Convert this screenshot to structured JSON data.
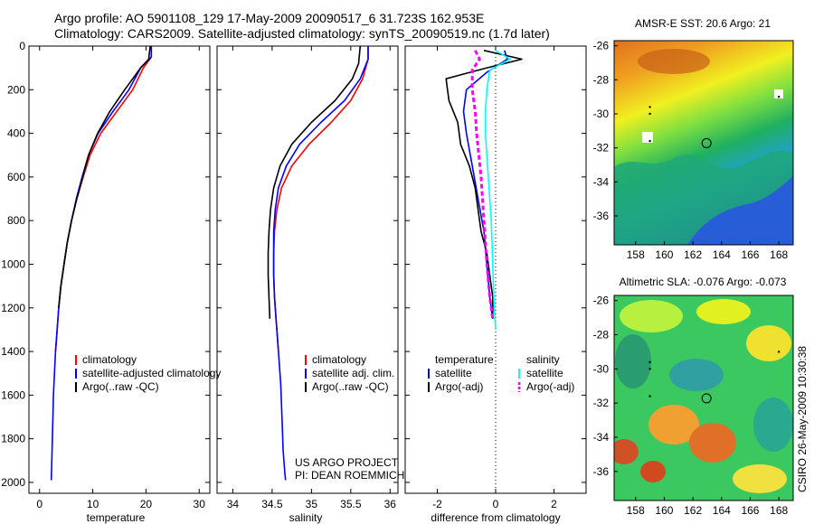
{
  "header": {
    "line1": "Argo profile: AO 5901108_129 17-May-2009 20090517_6 31.723S 162.953E",
    "line2": "Climatology: CARS2009. Satellite-adjusted climatology: synTS_20090519.nc (1.7d later)"
  },
  "side_label": "CSIRO 26-May-2009 10:30:38",
  "colors": {
    "climatology": "#ff0000",
    "satellite": "#0000ff",
    "argo": "#000000",
    "salinity_satellite": "#00ffff",
    "salinity_argo": "#ff00ff"
  },
  "project_note": [
    "US ARGO PROJECT",
    "PI: DEAN ROEMMICH"
  ],
  "chart_data": [
    {
      "type": "line",
      "xlabel": "temperature",
      "ylim": [
        2050,
        0
      ],
      "xlim": [
        -2,
        32
      ],
      "xticks": [
        "0",
        "10",
        "20",
        "30"
      ],
      "xtick_values": [
        0,
        10,
        20,
        30
      ],
      "yticks": [
        "0",
        "200",
        "400",
        "600",
        "800",
        "1000",
        "1200",
        "1400",
        "1600",
        "1800",
        "2000"
      ],
      "ytick_values": [
        0,
        200,
        400,
        600,
        800,
        1000,
        1200,
        1400,
        1600,
        1800,
        2000
      ],
      "legend": [
        "climatology",
        "satellite-adjusted climatology",
        "Argo(..raw -QC)"
      ],
      "series": [
        {
          "name": "climatology",
          "color": "#ff0000",
          "points": [
            [
              21.0,
              0
            ],
            [
              21.0,
              50
            ],
            [
              19.5,
              100
            ],
            [
              17.5,
              200
            ],
            [
              14.5,
              300
            ],
            [
              11.5,
              400
            ],
            [
              9.5,
              500
            ],
            [
              8.2,
              600
            ],
            [
              7.0,
              700
            ],
            [
              6.0,
              800
            ],
            [
              5.2,
              900
            ],
            [
              4.6,
              1000
            ],
            [
              4.0,
              1100
            ],
            [
              3.6,
              1200
            ],
            [
              3.3,
              1300
            ],
            [
              3.0,
              1400
            ]
          ]
        },
        {
          "name": "satellite-adjusted climatology",
          "color": "#0000ff",
          "points": [
            [
              21.0,
              0
            ],
            [
              21.0,
              50
            ],
            [
              19.0,
              100
            ],
            [
              16.8,
              200
            ],
            [
              13.8,
              300
            ],
            [
              11.0,
              400
            ],
            [
              9.2,
              500
            ],
            [
              8.0,
              600
            ],
            [
              6.9,
              700
            ],
            [
              6.0,
              800
            ],
            [
              5.2,
              900
            ],
            [
              4.6,
              1000
            ],
            [
              4.0,
              1100
            ],
            [
              3.6,
              1200
            ],
            [
              3.3,
              1300
            ],
            [
              3.0,
              1400
            ],
            [
              2.8,
              1500
            ],
            [
              2.6,
              1600
            ],
            [
              2.5,
              1700
            ],
            [
              2.4,
              1800
            ],
            [
              2.3,
              1900
            ],
            [
              2.2,
              1990
            ]
          ]
        },
        {
          "name": "Argo(..raw -QC)",
          "color": "#000000",
          "points": [
            [
              20.8,
              0
            ],
            [
              20.5,
              60
            ],
            [
              19.0,
              100
            ],
            [
              16.0,
              200
            ],
            [
              13.2,
              300
            ],
            [
              10.9,
              400
            ],
            [
              9.2,
              500
            ],
            [
              8.1,
              600
            ],
            [
              7.0,
              700
            ],
            [
              6.0,
              800
            ],
            [
              5.2,
              900
            ],
            [
              4.6,
              1000
            ],
            [
              4.0,
              1100
            ],
            [
              3.6,
              1200
            ]
          ]
        }
      ]
    },
    {
      "type": "line",
      "xlabel": "salinity",
      "ylim": [
        2050,
        0
      ],
      "xlim": [
        33.8,
        36.1
      ],
      "xticks": [
        "34",
        "34.5",
        "35",
        "35.5",
        "36"
      ],
      "xtick_values": [
        34,
        34.5,
        35,
        35.5,
        36
      ],
      "legend": [
        "climatology",
        "satellite adj. clim.",
        "Argo(..raw -QC)"
      ],
      "series": [
        {
          "name": "climatology",
          "color": "#ff0000",
          "points": [
            [
              35.72,
              0
            ],
            [
              35.72,
              60
            ],
            [
              35.65,
              150
            ],
            [
              35.5,
              250
            ],
            [
              35.25,
              350
            ],
            [
              34.97,
              450
            ],
            [
              34.75,
              550
            ],
            [
              34.62,
              650
            ],
            [
              34.56,
              750
            ],
            [
              34.53,
              850
            ],
            [
              34.52,
              950
            ],
            [
              34.52,
              1050
            ],
            [
              34.53,
              1150
            ],
            [
              34.55,
              1250
            ],
            [
              34.57,
              1350
            ],
            [
              34.58,
              1400
            ]
          ]
        },
        {
          "name": "satellite adj. clim.",
          "color": "#0000ff",
          "points": [
            [
              35.72,
              0
            ],
            [
              35.72,
              60
            ],
            [
              35.62,
              150
            ],
            [
              35.42,
              250
            ],
            [
              35.12,
              350
            ],
            [
              34.85,
              450
            ],
            [
              34.68,
              550
            ],
            [
              34.58,
              650
            ],
            [
              34.54,
              750
            ],
            [
              34.52,
              850
            ],
            [
              34.52,
              950
            ],
            [
              34.52,
              1050
            ],
            [
              34.53,
              1150
            ],
            [
              34.55,
              1250
            ],
            [
              34.57,
              1350
            ],
            [
              34.59,
              1450
            ],
            [
              34.61,
              1550
            ],
            [
              34.62,
              1650
            ],
            [
              34.63,
              1750
            ],
            [
              34.64,
              1850
            ],
            [
              34.66,
              1950
            ],
            [
              34.67,
              1990
            ]
          ]
        },
        {
          "name": "Argo(..raw -QC)",
          "color": "#000000",
          "points": [
            [
              35.62,
              0
            ],
            [
              35.6,
              80
            ],
            [
              35.52,
              150
            ],
            [
              35.3,
              250
            ],
            [
              35.0,
              350
            ],
            [
              34.75,
              450
            ],
            [
              34.6,
              550
            ],
            [
              34.52,
              650
            ],
            [
              34.48,
              750
            ],
            [
              34.46,
              850
            ],
            [
              34.45,
              950
            ],
            [
              34.45,
              1050
            ],
            [
              34.46,
              1150
            ],
            [
              34.47,
              1250
            ]
          ]
        }
      ]
    },
    {
      "type": "line",
      "xlabel": "difference from climatology",
      "ylim": [
        2050,
        0
      ],
      "xlim": [
        -3.1,
        3.1
      ],
      "xticks": [
        "-2",
        "0",
        "2"
      ],
      "xtick_values": [
        -2,
        0,
        2
      ],
      "legend": [
        "temperature",
        "satellite",
        "Argo(-adj)",
        "salinity",
        "satellite",
        "Argo(-adj)"
      ],
      "series": [
        {
          "name": "satellite",
          "color": "#0000ff",
          "points": [
            [
              0.3,
              20
            ],
            [
              0.4,
              60
            ],
            [
              -0.3,
              120
            ],
            [
              -1.0,
              200
            ],
            [
              -1.1,
              300
            ],
            [
              -1.0,
              400
            ],
            [
              -0.8,
              550
            ],
            [
              -0.6,
              700
            ],
            [
              -0.4,
              850
            ],
            [
              -0.3,
              1000
            ],
            [
              -0.2,
              1150
            ],
            [
              -0.1,
              1250
            ]
          ]
        },
        {
          "name": "Argo(-adj)",
          "color": "#000000",
          "points": [
            [
              -0.4,
              20
            ],
            [
              0.9,
              60
            ],
            [
              -0.3,
              100
            ],
            [
              -1.7,
              150
            ],
            [
              -1.6,
              250
            ],
            [
              -1.3,
              350
            ],
            [
              -1.2,
              450
            ],
            [
              -0.9,
              550
            ],
            [
              -0.7,
              650
            ],
            [
              -0.6,
              750
            ],
            [
              -0.5,
              850
            ],
            [
              -0.3,
              950
            ],
            [
              -0.2,
              1050
            ],
            [
              -0.1,
              1150
            ],
            [
              -0.1,
              1250
            ]
          ]
        },
        {
          "name": "satellite",
          "color": "#00ffff",
          "points": [
            [
              0.0,
              20
            ],
            [
              0.5,
              60
            ],
            [
              -0.2,
              110
            ],
            [
              -0.3,
              200
            ],
            [
              -0.35,
              300
            ],
            [
              -0.35,
              400
            ],
            [
              -0.25,
              600
            ],
            [
              -0.15,
              800
            ],
            [
              -0.1,
              1000
            ],
            [
              -0.05,
              1200
            ],
            [
              0.0,
              1300
            ]
          ]
        },
        {
          "name": "Argo(-adj)",
          "color": "#ff00ff",
          "dashed": true,
          "points": [
            [
              -0.7,
              20
            ],
            [
              -0.55,
              60
            ],
            [
              -0.8,
              110
            ],
            [
              -0.8,
              200
            ],
            [
              -0.7,
              300
            ],
            [
              -0.65,
              400
            ],
            [
              -0.5,
              600
            ],
            [
              -0.4,
              800
            ],
            [
              -0.3,
              1000
            ],
            [
              -0.2,
              1150
            ],
            [
              -0.1,
              1250
            ]
          ]
        }
      ]
    },
    {
      "type": "heatmap",
      "title": "AMSR-E SST: 20.6 Argo: 21",
      "xlim": [
        156.5,
        169
      ],
      "ylim": [
        -37.7,
        -25.7
      ],
      "xticks": [
        "158",
        "160",
        "162",
        "164",
        "166",
        "168"
      ],
      "xtick_values": [
        158,
        160,
        162,
        164,
        166,
        168
      ],
      "yticks": [
        "-26",
        "-28",
        "-30",
        "-32",
        "-34",
        "-36"
      ],
      "ytick_values": [
        -26,
        -28,
        -30,
        -32,
        -34,
        -36
      ],
      "marker": [
        162.953,
        -31.723
      ]
    },
    {
      "type": "heatmap",
      "title": "Altimetric SLA: -0.076 Argo: -0.073",
      "xlim": [
        156.5,
        169
      ],
      "ylim": [
        -37.7,
        -25.7
      ],
      "xticks": [
        "158",
        "160",
        "162",
        "164",
        "166",
        "168"
      ],
      "xtick_values": [
        158,
        160,
        162,
        164,
        166,
        168
      ],
      "yticks": [
        "-26",
        "-28",
        "-30",
        "-32",
        "-34",
        "-36"
      ],
      "ytick_values": [
        -26,
        -28,
        -30,
        -32,
        -34,
        -36
      ],
      "marker": [
        162.953,
        -31.723
      ]
    }
  ]
}
